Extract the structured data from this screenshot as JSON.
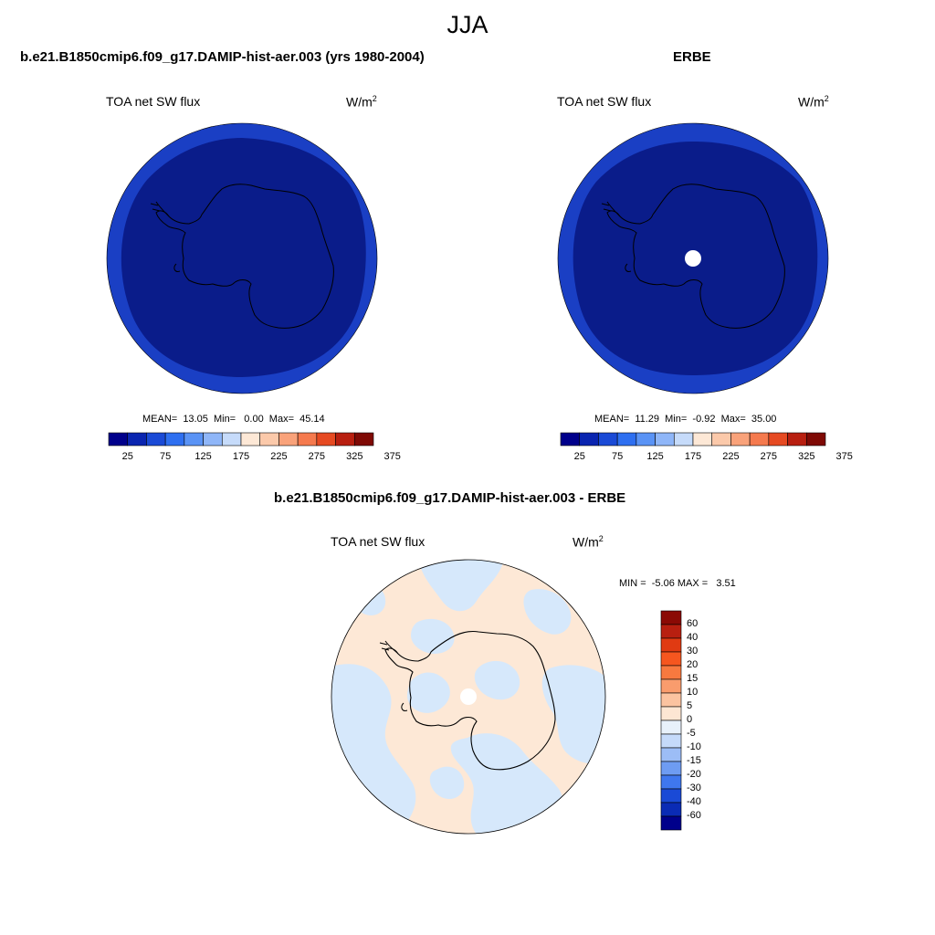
{
  "figure": {
    "title": "JJA",
    "colors": {
      "ocean_outer": "#1a3fc4",
      "ocean_inner": "#0a1c8a",
      "diff_neg": "#d6e8fb",
      "diff_pos": "#fde8d6",
      "coast": "#000000"
    }
  },
  "panels": [
    {
      "id": "model",
      "title": "b.e21.B1850cmip6.f09_g17.DAMIP-hist-aer.003 (yrs 1980-2004)",
      "variable": "TOA net SW flux",
      "units": "W/m",
      "units_exp": "2",
      "stats": "MEAN=  13.05  Min=   0.00  Max=  45.14",
      "has_pole_hole": false
    },
    {
      "id": "obs",
      "title": "ERBE",
      "variable": "TOA net SW flux",
      "units": "W/m",
      "units_exp": "2",
      "stats": "MEAN=  11.29  Min=  -0.92  Max=  35.00",
      "has_pole_hole": true
    },
    {
      "id": "diff",
      "title": "b.e21.B1850cmip6.f09_g17.DAMIP-hist-aer.003 - ERBE",
      "variable": "TOA net SW flux",
      "units": "W/m",
      "units_exp": "2",
      "stats": "MIN =  -5.06 MAX =   3.51",
      "has_pole_hole": true
    }
  ],
  "colorbars": {
    "main": {
      "orientation": "horizontal",
      "colors": [
        "#00008b",
        "#0a25b0",
        "#1a4ad6",
        "#2e6ff0",
        "#5a93f5",
        "#8fb6f8",
        "#c6dbfa",
        "#fde8d6",
        "#fbc9aa",
        "#f9a27a",
        "#f57a4e",
        "#e64a22",
        "#b81f10",
        "#7f0a05"
      ],
      "labels": [
        "25",
        "75",
        "125",
        "175",
        "225",
        "275",
        "325",
        "375"
      ]
    },
    "diff": {
      "orientation": "vertical",
      "colors_top_to_bottom": [
        "#8b0a05",
        "#b81f10",
        "#e03a12",
        "#f6561f",
        "#f8793f",
        "#f99c6d",
        "#fbc3a0",
        "#fde6d3",
        "#e8f1fb",
        "#c5dafa",
        "#9cbdf6",
        "#6e9cf2",
        "#3f77ee",
        "#1a4ad6",
        "#0a2bb5",
        "#00008b"
      ],
      "labels_top_to_bottom": [
        "60",
        "40",
        "30",
        "20",
        "15",
        "10",
        "5",
        "0",
        "-5",
        "-10",
        "-15",
        "-20",
        "-30",
        "-40",
        "-60"
      ]
    }
  }
}
